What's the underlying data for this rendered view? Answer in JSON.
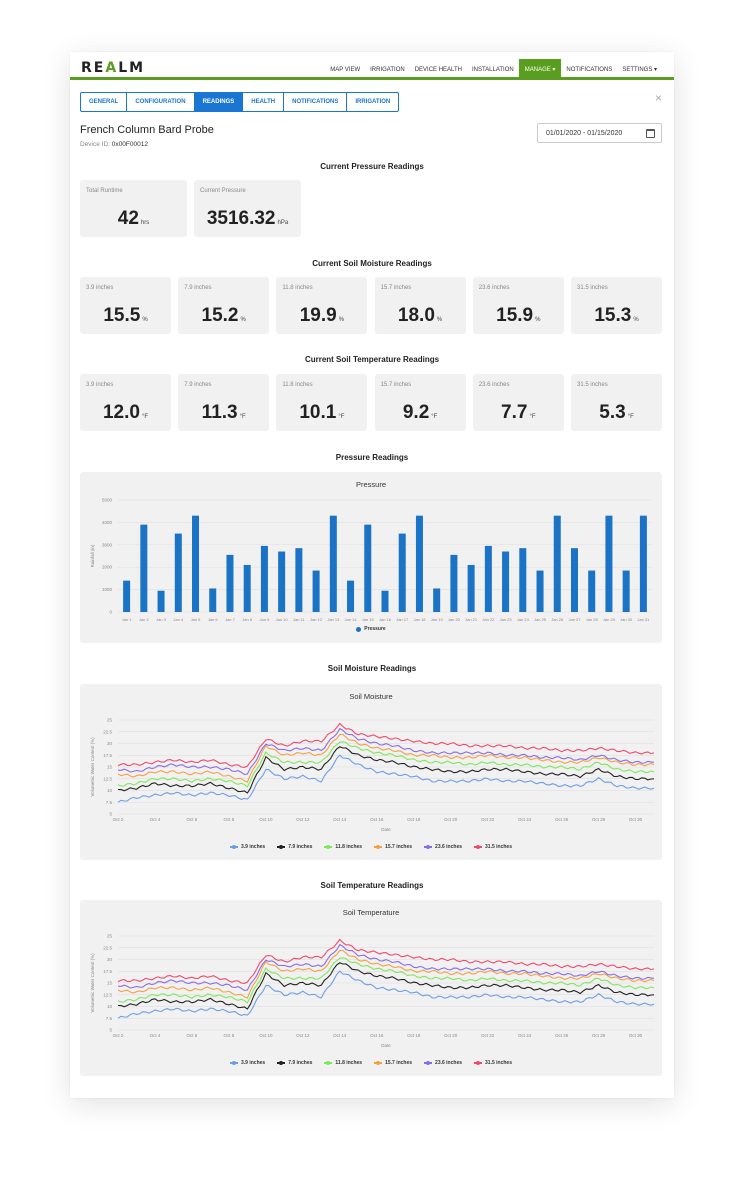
{
  "app": {
    "logo": "REALM",
    "nav": [
      "MAP VIEW",
      "IRRIGATION",
      "DEVICE HEALTH",
      "INSTALLATION",
      "MANAGE ▾",
      "NOTIFICATIONS",
      "SETTINGS ▾"
    ],
    "active_nav_index": 4,
    "close_symbol": "×"
  },
  "tabs": [
    "GENERAL",
    "CONFIGURATION",
    "READINGS",
    "HEALTH",
    "NOTIFICATIONS",
    "IRRIGATION"
  ],
  "active_tab_index": 2,
  "device": {
    "name": "French Column Bard Probe",
    "id_label": "Device ID:",
    "id_value": "0x00F00012",
    "date_range": "01/01/2020 - 01/15/2020"
  },
  "pressure_summary": {
    "title": "Current Pressure Readings",
    "cards": [
      {
        "label": "Total Runtime",
        "value": "42",
        "unit": "hrs"
      },
      {
        "label": "Current Pressure",
        "value": "3516.32",
        "unit": "hPa"
      }
    ]
  },
  "soil_moisture_summary": {
    "title": "Current Soil Moisture Readings",
    "cards": [
      {
        "label": "3.9 inches",
        "value": "15.5",
        "unit": "%"
      },
      {
        "label": "7.9 inches",
        "value": "15.2",
        "unit": "%"
      },
      {
        "label": "11.8 inches",
        "value": "19.9",
        "unit": "%"
      },
      {
        "label": "15.7 inches",
        "value": "18.0",
        "unit": "%"
      },
      {
        "label": "23.6 inches",
        "value": "15.9",
        "unit": "%"
      },
      {
        "label": "31.5 inches",
        "value": "15.3",
        "unit": "%"
      }
    ]
  },
  "soil_temp_summary": {
    "title": "Current Soil Temperature Readings",
    "cards": [
      {
        "label": "3.9 inches",
        "value": "12.0",
        "unit": "°F"
      },
      {
        "label": "7.9 inches",
        "value": "11.3",
        "unit": "°F"
      },
      {
        "label": "11.8 inches",
        "value": "10.1",
        "unit": "°F"
      },
      {
        "label": "15.7 inches",
        "value": "9.2",
        "unit": "°F"
      },
      {
        "label": "23.6 inches",
        "value": "7.7",
        "unit": "°F"
      },
      {
        "label": "31.5 inches",
        "value": "5.3",
        "unit": "°F"
      }
    ]
  },
  "colors": {
    "accent_green": "#5a9e1f",
    "tab_blue": "#1976d2",
    "bar_blue": "#1a73c4",
    "series": [
      "#6c9ee8",
      "#222222",
      "#7ee85a",
      "#f5a142",
      "#8a6de6",
      "#ef4a6e"
    ]
  },
  "sections": {
    "pressure_chart": "Pressure Readings",
    "moisture_chart": "Soil Moisture Readings",
    "temp_chart": "Soil Temperature Readings"
  },
  "chart_data": [
    {
      "type": "bar",
      "title": "Pressure",
      "ylabel": "Rainfall (in)",
      "ylim": [
        0,
        5000
      ],
      "yticks": [
        "0",
        "1000",
        "2000",
        "3000",
        "4000",
        "5000"
      ],
      "grid": true,
      "legend": "bottom-center",
      "categories": [
        "Jan 1",
        "Jan 2",
        "Jan 3",
        "Jan 4",
        "Jan 5",
        "Jan 6",
        "Jan 7",
        "Jan 8",
        "Jan 9",
        "Jan 10",
        "Jan 11",
        "Jan 12",
        "Jan 13",
        "Jan 14",
        "Jan 15",
        "Jan 16",
        "Jan 17",
        "Jan 18",
        "Jan 19",
        "Jan 20",
        "Jan 21",
        "Jan 22",
        "Jan 23",
        "Jan 24",
        "Jan 25",
        "Jan 26",
        "Jan 27",
        "Jan 28",
        "Jan 29",
        "Jan 30",
        "Jan 31"
      ],
      "series": [
        {
          "name": "Pressure",
          "values": [
            1400,
            3900,
            950,
            3500,
            4300,
            1050,
            2550,
            2100,
            2950,
            2700,
            2850,
            1850,
            4300,
            1400,
            3900,
            950,
            3500,
            4300,
            1050,
            2550,
            2100,
            2950,
            2700,
            2850,
            1850,
            4300,
            2850,
            1850,
            4300,
            1850,
            4300
          ]
        }
      ]
    },
    {
      "type": "line",
      "title": "Soil Moisture",
      "xlabel": "Date",
      "ylabel": "Volumetric Water Content (%)",
      "ylim": [
        5,
        25
      ],
      "yticks": [
        "5",
        "7.5",
        "10",
        "12.5",
        "15",
        "17.5",
        "20",
        "22.5",
        "25"
      ],
      "x": [
        "Oct 2",
        "Oct 3",
        "Oct 4",
        "Oct 5",
        "Oct 6",
        "Oct 7",
        "Oct 8",
        "Oct 9",
        "Oct 10",
        "Oct 11",
        "Oct 12",
        "Oct 13",
        "Oct 14",
        "Oct 15",
        "Oct 16",
        "Oct 17",
        "Oct 18",
        "Oct 19",
        "Oct 20",
        "Oct 21",
        "Oct 22",
        "Oct 23",
        "Oct 24",
        "Oct 25",
        "Oct 26",
        "Oct 27",
        "Oct 28",
        "Oct 29",
        "Oct 30",
        "Oct 31"
      ],
      "xticks": [
        "Oct 2",
        "Oct 4",
        "Oct 6",
        "Oct 8",
        "Oct 10",
        "Oct 12",
        "Oct 14",
        "Oct 16",
        "Oct 18",
        "Oct 20",
        "Oct 22",
        "Oct 24",
        "Oct 26",
        "Oct 28",
        "Oct 30"
      ],
      "grid": true,
      "legend": "bottom-center",
      "series": [
        {
          "name": "3.9 inches",
          "values": [
            7.5,
            8.5,
            9,
            9.5,
            9,
            9.5,
            9,
            8,
            14.5,
            12.5,
            13,
            12,
            17.5,
            15.5,
            14,
            13.5,
            13,
            12,
            12,
            12,
            12.5,
            12,
            12,
            11.5,
            11,
            11,
            12.5,
            11,
            10.5,
            10.5
          ]
        },
        {
          "name": "7.9 inches",
          "values": [
            10,
            10.5,
            11.5,
            11,
            11,
            11.5,
            10.5,
            9.5,
            17,
            14.5,
            15,
            14.5,
            19.5,
            17.5,
            16.5,
            16,
            15,
            14.5,
            14,
            14,
            14.5,
            14.5,
            14,
            13.5,
            13.5,
            13,
            14.5,
            13,
            12.5,
            12.5
          ]
        },
        {
          "name": "11.8 inches",
          "values": [
            11,
            11.5,
            12.5,
            12.5,
            12,
            12.5,
            12,
            11,
            18,
            16,
            16,
            16,
            20.5,
            19,
            18,
            17.5,
            16.5,
            16,
            16,
            15.5,
            16,
            15.5,
            15.5,
            15,
            15,
            14.5,
            16,
            14.5,
            14,
            14
          ]
        },
        {
          "name": "15.7 inches",
          "values": [
            13.5,
            13,
            14,
            14,
            13.5,
            14,
            13,
            12,
            19.5,
            17.5,
            18,
            17.5,
            22,
            20,
            19,
            18.5,
            17.5,
            17.5,
            17,
            17,
            17.5,
            17,
            17,
            16.5,
            16,
            16,
            17,
            16,
            15.5,
            15.5
          ]
        },
        {
          "name": "23.6 inches",
          "values": [
            14.5,
            14,
            15,
            15.5,
            15,
            15,
            14.5,
            13.5,
            20,
            18.5,
            19,
            18.5,
            23,
            21,
            20,
            19.5,
            18.5,
            18,
            18,
            18,
            18,
            17.5,
            17.5,
            17,
            17,
            16.5,
            17.5,
            16.5,
            16,
            16
          ]
        },
        {
          "name": "31.5 inches",
          "values": [
            15.5,
            15.5,
            16,
            16.5,
            16,
            16.5,
            15.5,
            15,
            21,
            19.5,
            20.5,
            20.5,
            24,
            22,
            21.5,
            21,
            20.5,
            20,
            20,
            19.5,
            19.5,
            19.5,
            19,
            19,
            18.5,
            18.5,
            19,
            18.5,
            18,
            18
          ]
        }
      ]
    },
    {
      "type": "line",
      "title": "Soil Temperature",
      "xlabel": "Date",
      "ylabel": "Volumetric Water Content (%)",
      "ylim": [
        5,
        25
      ],
      "yticks": [
        "5",
        "7.5",
        "10",
        "12.5",
        "15",
        "17.5",
        "20",
        "22.5",
        "25"
      ],
      "x": [
        "Oct 2",
        "Oct 3",
        "Oct 4",
        "Oct 5",
        "Oct 6",
        "Oct 7",
        "Oct 8",
        "Oct 9",
        "Oct 10",
        "Oct 11",
        "Oct 12",
        "Oct 13",
        "Oct 14",
        "Oct 15",
        "Oct 16",
        "Oct 17",
        "Oct 18",
        "Oct 19",
        "Oct 20",
        "Oct 21",
        "Oct 22",
        "Oct 23",
        "Oct 24",
        "Oct 25",
        "Oct 26",
        "Oct 27",
        "Oct 28",
        "Oct 29",
        "Oct 30",
        "Oct 31"
      ],
      "xticks": [
        "Oct 2",
        "Oct 4",
        "Oct 6",
        "Oct 8",
        "Oct 10",
        "Oct 12",
        "Oct 14",
        "Oct 16",
        "Oct 18",
        "Oct 20",
        "Oct 22",
        "Oct 24",
        "Oct 26",
        "Oct 28",
        "Oct 30"
      ],
      "grid": true,
      "legend": "bottom-center",
      "series": [
        {
          "name": "3.9 inches",
          "values": [
            7.5,
            8.5,
            9,
            9.5,
            9,
            9.5,
            9,
            8,
            14.5,
            12.5,
            13,
            12,
            17.5,
            15.5,
            14,
            13.5,
            13,
            12,
            12,
            12,
            12.5,
            12,
            12,
            11.5,
            11,
            11,
            12.5,
            11,
            10.5,
            10.5
          ]
        },
        {
          "name": "7.9 inches",
          "values": [
            10,
            10.5,
            11.5,
            11,
            11,
            11.5,
            10.5,
            9.5,
            17,
            14.5,
            15,
            14.5,
            19.5,
            17.5,
            16.5,
            16,
            15,
            14.5,
            14,
            14,
            14.5,
            14.5,
            14,
            13.5,
            13.5,
            13,
            14.5,
            13,
            12.5,
            12.5
          ]
        },
        {
          "name": "11.8 inches",
          "values": [
            11,
            11.5,
            12.5,
            12.5,
            12,
            12.5,
            12,
            11,
            18,
            16,
            16,
            16,
            20.5,
            19,
            18,
            17.5,
            16.5,
            16,
            16,
            15.5,
            16,
            15.5,
            15.5,
            15,
            15,
            14.5,
            16,
            14.5,
            14,
            14
          ]
        },
        {
          "name": "15.7 inches",
          "values": [
            13.5,
            13,
            14,
            14,
            13.5,
            14,
            13,
            12,
            19.5,
            17.5,
            18,
            17.5,
            22,
            20,
            19,
            18.5,
            17.5,
            17.5,
            17,
            17,
            17.5,
            17,
            17,
            16.5,
            16,
            16,
            17,
            16,
            15.5,
            15.5
          ]
        },
        {
          "name": "23.6 inches",
          "values": [
            14.5,
            14,
            15,
            15.5,
            15,
            15,
            14.5,
            13.5,
            20,
            18.5,
            19,
            18.5,
            23,
            21,
            20,
            19.5,
            18.5,
            18,
            18,
            18,
            18,
            17.5,
            17.5,
            17,
            17,
            16.5,
            17.5,
            16.5,
            16,
            16
          ]
        },
        {
          "name": "31.5 inches",
          "values": [
            15.5,
            15.5,
            16,
            16.5,
            16,
            16.5,
            15.5,
            15,
            21,
            19.5,
            20.5,
            20.5,
            24,
            22,
            21.5,
            21,
            20.5,
            20,
            20,
            19.5,
            19.5,
            19.5,
            19,
            19,
            18.5,
            18.5,
            19,
            18.5,
            18,
            18
          ]
        }
      ]
    }
  ]
}
